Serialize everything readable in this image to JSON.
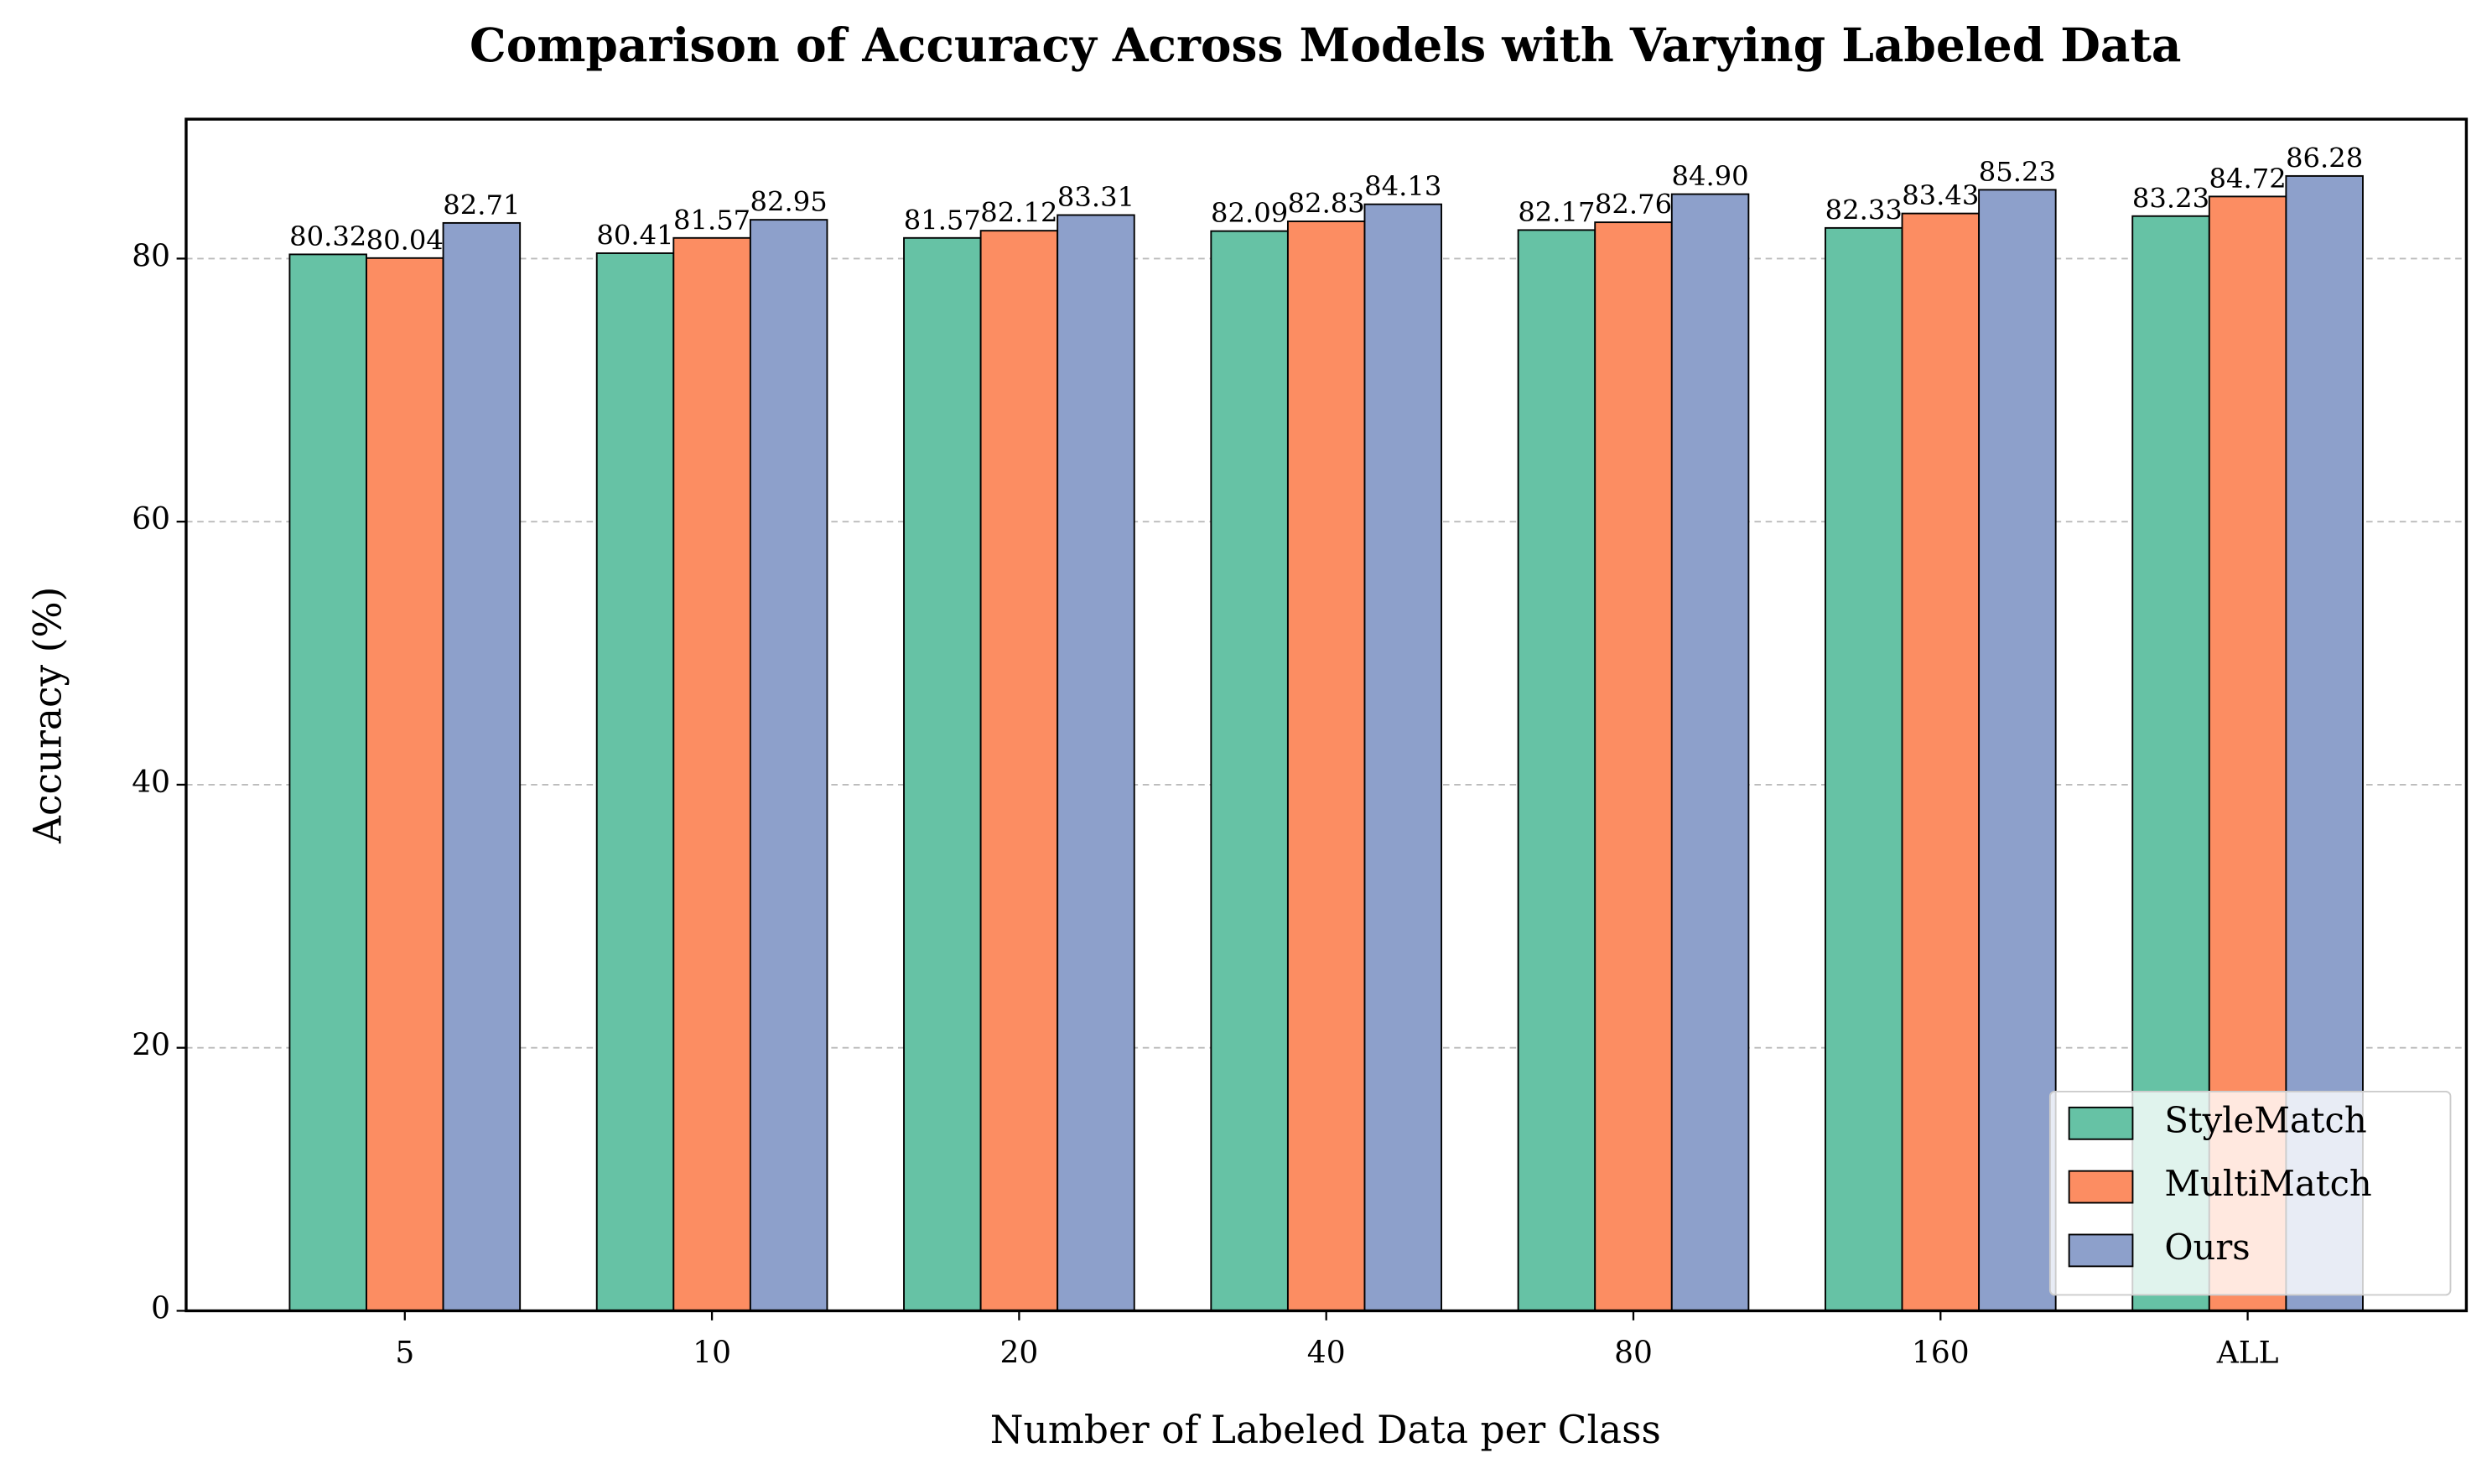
{
  "chart_data": {
    "type": "bar",
    "title": "Comparison of Accuracy Across Models with Varying Labeled Data",
    "x_label": "Number of Labeled Data per Class",
    "y_label": "Accuracy (%)",
    "categories": [
      "5",
      "10",
      "20",
      "40",
      "80",
      "160",
      "ALL"
    ],
    "series": [
      {
        "name": "StyleMatch",
        "color": "#66c2a5",
        "values": [
          80.32,
          80.41,
          81.57,
          82.09,
          82.17,
          82.33,
          83.23
        ],
        "value_labels": [
          "80.32",
          "80.41",
          "81.57",
          "82.09",
          "82.17",
          "82.33",
          "83.23"
        ]
      },
      {
        "name": "MultiMatch",
        "color": "#fc8d62",
        "values": [
          80.04,
          81.57,
          82.12,
          82.83,
          82.76,
          83.43,
          84.72
        ],
        "value_labels": [
          "80.04",
          "81.57",
          "82.12",
          "82.83",
          "82.76",
          "83.43",
          "84.72"
        ]
      },
      {
        "name": "Ours",
        "color": "#8da0cb",
        "values": [
          82.71,
          82.95,
          83.31,
          84.13,
          84.9,
          85.23,
          86.28
        ],
        "value_labels": [
          "82.71",
          "82.95",
          "83.31",
          "84.13",
          "84.90",
          "85.23",
          "86.28"
        ]
      }
    ],
    "ylim": [
      0,
      90.6
    ],
    "yticks": [
      0,
      20,
      40,
      60,
      80
    ],
    "grid": true,
    "legend": "lower right"
  }
}
